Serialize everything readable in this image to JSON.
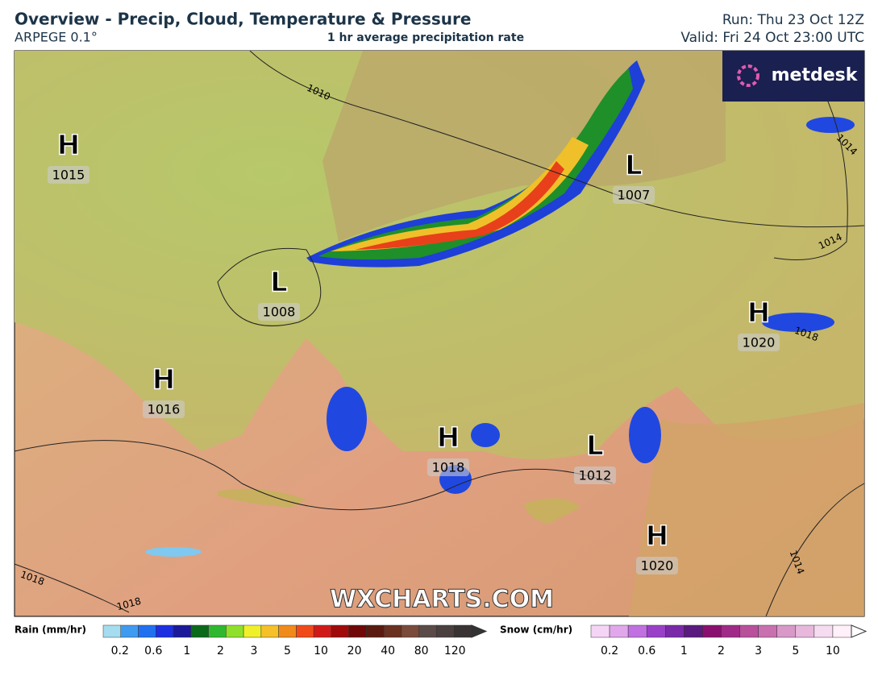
{
  "header": {
    "title": "Overview - Precip, Cloud, Temperature & Pressure",
    "model": "ARPEGE 0.1°",
    "subtitle": "1 hr average precipitation rate",
    "run": "Run: Thu 23 Oct 12Z",
    "valid": "Valid: Fri 24 Oct 23:00 UTC"
  },
  "logo": "metdesk",
  "pressure_centers": [
    {
      "type": "H",
      "value": 1015
    },
    {
      "type": "H",
      "value": 1016
    },
    {
      "type": "L",
      "value": 1008
    },
    {
      "type": "H",
      "value": 1018
    },
    {
      "type": "L",
      "value": 1012
    },
    {
      "type": "L",
      "value": 1007
    },
    {
      "type": "H",
      "value": 1020
    },
    {
      "type": "H",
      "value": 1020
    }
  ],
  "isobar_labels": [
    1010,
    1014,
    1014,
    1018,
    1018,
    1018,
    1014
  ],
  "watermark": "WXCHARTS.COM",
  "legend": {
    "rain": {
      "label": "Rain (mm/hr)",
      "ticks": [
        0.2,
        0.6,
        1,
        2,
        3,
        5,
        10,
        20,
        40,
        80,
        120
      ],
      "colors": [
        "#a6dcef",
        "#3f9bf0",
        "#2070f0",
        "#1d2fe0",
        "#1a1a9a",
        "#0a6a1a",
        "#2fb82f",
        "#8fe02a",
        "#f0f02a",
        "#f5c02a",
        "#f08a1a",
        "#f04a1a",
        "#d01a1a",
        "#a00a0a",
        "#700808",
        "#5a1a10",
        "#6a3020",
        "#7a4a3a",
        "#5a4a48",
        "#4a4040",
        "#3a3333"
      ]
    },
    "snow": {
      "label": "Snow (cm/hr)",
      "ticks": [
        0.2,
        0.6,
        1,
        2,
        3,
        5,
        10
      ],
      "colors": [
        "#f5d5f5",
        "#e0a8ea",
        "#c070e0",
        "#9a40c8",
        "#7a2aa8",
        "#5a1a80",
        "#8a1070",
        "#a02a88",
        "#b8509c",
        "#c870b0",
        "#d898c8",
        "#e8b8dc",
        "#f5dcf0",
        "#fff0fa"
      ]
    }
  }
}
